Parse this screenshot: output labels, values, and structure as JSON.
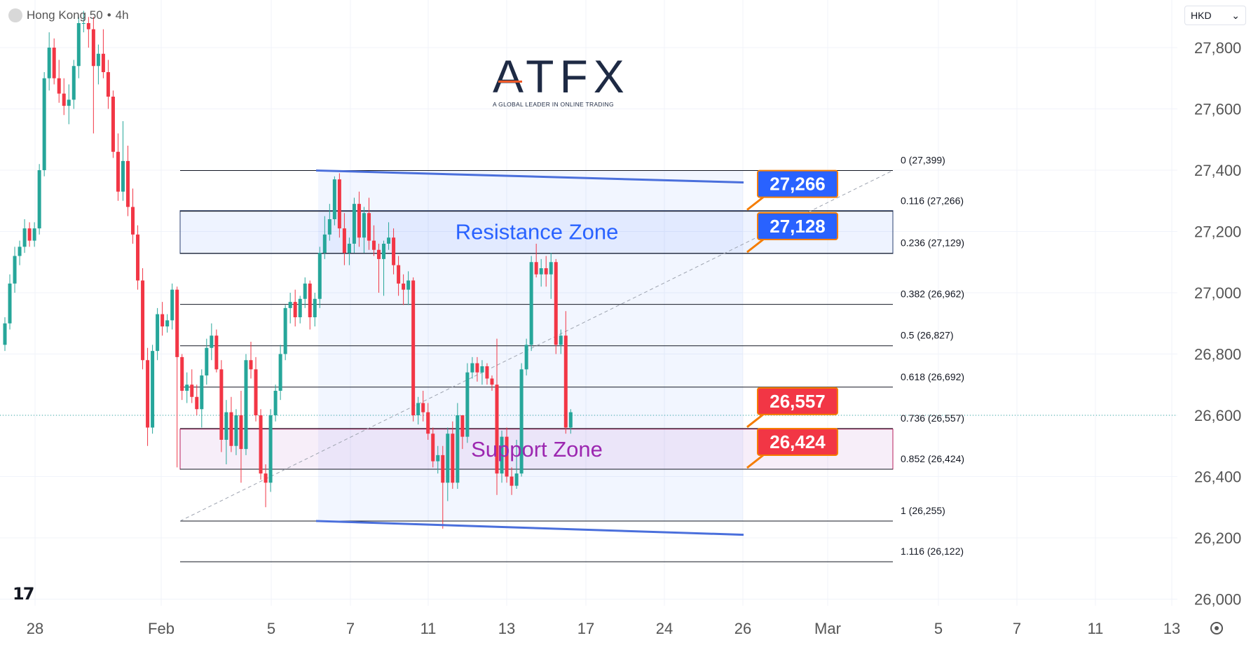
{
  "header": {
    "symbol": "Hong Kong 50",
    "separator": " • ",
    "timeframe": "4h"
  },
  "currency_select": {
    "value": "HKD",
    "chevron": "⌄"
  },
  "logo": {
    "name": "ATFX",
    "tagline": "A GLOBAL LEADER IN ONLINE TRADING"
  },
  "tv_logo": {
    "text": "17"
  },
  "colors": {
    "up": "#26a69a",
    "down": "#f23645",
    "resistance_zone": "#2962ff",
    "support_zone": "#9c27b0",
    "channel_line": "#4a6fdc",
    "label_blue": "#2962ff",
    "label_red": "#f23645"
  },
  "chart_data": {
    "type": "candlestick",
    "y_range": [
      25950,
      27900
    ],
    "y_ticks": [
      "27,800",
      "27,600",
      "27,400",
      "27,200",
      "27,000",
      "26,800",
      "26,600",
      "26,400",
      "26,200",
      "26,000"
    ],
    "x_ticks": [
      "28",
      "Feb",
      "5",
      "7",
      "11",
      "13",
      "17",
      "24",
      "26",
      "Mar",
      "5",
      "7",
      "11",
      "13"
    ],
    "current_price": 26600,
    "fib_levels": [
      {
        "label": "0 (27,399)",
        "ratio": 0,
        "value": 27399
      },
      {
        "label": "0.116 (27,266)",
        "ratio": 0.116,
        "value": 27266
      },
      {
        "label": "0.236 (27,129)",
        "ratio": 0.236,
        "value": 27129
      },
      {
        "label": "0.382 (26,962)",
        "ratio": 0.382,
        "value": 26962
      },
      {
        "label": "0.5 (26,827)",
        "ratio": 0.5,
        "value": 26827
      },
      {
        "label": "0.618 (26,692)",
        "ratio": 0.618,
        "value": 26692
      },
      {
        "label": "0.736 (26,557)",
        "ratio": 0.736,
        "value": 26557
      },
      {
        "label": "0.852 (26,424)",
        "ratio": 0.852,
        "value": 26424
      },
      {
        "label": "1 (26,255)",
        "ratio": 1,
        "value": 26255
      },
      {
        "label": "1.116 (26,122)",
        "ratio": 1.116,
        "value": 26122
      }
    ],
    "zones": [
      {
        "name": "Resistance Zone",
        "from": 27128,
        "to": 27268,
        "color": "#2962ff"
      },
      {
        "name": "Support Zone",
        "from": 26424,
        "to": 26555,
        "color": "#9c27b0"
      }
    ],
    "price_labels": [
      {
        "text": "27,266",
        "value": 27266,
        "color": "#2962ff"
      },
      {
        "text": "27,128",
        "value": 27128,
        "color": "#2962ff"
      },
      {
        "text": "26,557",
        "value": 26557,
        "color": "#f23645"
      },
      {
        "text": "26,424",
        "value": 26424,
        "color": "#f23645"
      }
    ],
    "candles": [
      {
        "o": 26830,
        "h": 26920,
        "l": 26810,
        "c": 26900
      },
      {
        "o": 26900,
        "h": 27060,
        "l": 26880,
        "c": 27030
      },
      {
        "o": 27030,
        "h": 27150,
        "l": 27000,
        "c": 27120
      },
      {
        "o": 27120,
        "h": 27170,
        "l": 27090,
        "c": 27150
      },
      {
        "o": 27150,
        "h": 27240,
        "l": 27130,
        "c": 27210
      },
      {
        "o": 27210,
        "h": 27230,
        "l": 27150,
        "c": 27170
      },
      {
        "o": 27170,
        "h": 27230,
        "l": 27150,
        "c": 27210
      },
      {
        "o": 27210,
        "h": 27420,
        "l": 27190,
        "c": 27400
      },
      {
        "o": 27400,
        "h": 27720,
        "l": 27380,
        "c": 27700
      },
      {
        "o": 27700,
        "h": 27850,
        "l": 27660,
        "c": 27800
      },
      {
        "o": 27800,
        "h": 27830,
        "l": 27680,
        "c": 27700
      },
      {
        "o": 27700,
        "h": 27760,
        "l": 27620,
        "c": 27650
      },
      {
        "o": 27650,
        "h": 27700,
        "l": 27580,
        "c": 27610
      },
      {
        "o": 27610,
        "h": 27680,
        "l": 27550,
        "c": 27630
      },
      {
        "o": 27630,
        "h": 27760,
        "l": 27600,
        "c": 27740
      },
      {
        "o": 27740,
        "h": 27900,
        "l": 27700,
        "c": 27880
      },
      {
        "o": 27880,
        "h": 27920,
        "l": 27850,
        "c": 27880
      },
      {
        "o": 27880,
        "h": 27900,
        "l": 27800,
        "c": 27860
      },
      {
        "o": 27860,
        "h": 27900,
        "l": 27520,
        "c": 27740
      },
      {
        "o": 27740,
        "h": 27810,
        "l": 27680,
        "c": 27780
      },
      {
        "o": 27780,
        "h": 27860,
        "l": 27700,
        "c": 27720
      },
      {
        "o": 27720,
        "h": 27760,
        "l": 27600,
        "c": 27640
      },
      {
        "o": 27640,
        "h": 27660,
        "l": 27440,
        "c": 27460
      },
      {
        "o": 27460,
        "h": 27520,
        "l": 27300,
        "c": 27330
      },
      {
        "o": 27330,
        "h": 27560,
        "l": 27300,
        "c": 27430
      },
      {
        "o": 27430,
        "h": 27480,
        "l": 27250,
        "c": 27280
      },
      {
        "o": 27280,
        "h": 27340,
        "l": 27160,
        "c": 27190
      },
      {
        "o": 27190,
        "h": 27220,
        "l": 27010,
        "c": 27040
      },
      {
        "o": 27040,
        "h": 27080,
        "l": 26750,
        "c": 26780
      },
      {
        "o": 26780,
        "h": 26820,
        "l": 26500,
        "c": 26560
      },
      {
        "o": 26560,
        "h": 26830,
        "l": 26540,
        "c": 26810
      },
      {
        "o": 26810,
        "h": 26950,
        "l": 26780,
        "c": 26930
      },
      {
        "o": 26930,
        "h": 26970,
        "l": 26860,
        "c": 26890
      },
      {
        "o": 26890,
        "h": 26930,
        "l": 26870,
        "c": 26910
      },
      {
        "o": 26910,
        "h": 27030,
        "l": 26880,
        "c": 27010
      },
      {
        "o": 27010,
        "h": 27020,
        "l": 26430,
        "c": 26790
      },
      {
        "o": 26790,
        "h": 26800,
        "l": 26650,
        "c": 26680
      },
      {
        "o": 26680,
        "h": 26740,
        "l": 26640,
        "c": 26700
      },
      {
        "o": 26700,
        "h": 26750,
        "l": 26640,
        "c": 26660
      },
      {
        "o": 26660,
        "h": 26700,
        "l": 26600,
        "c": 26620
      },
      {
        "o": 26620,
        "h": 26750,
        "l": 26560,
        "c": 26730
      },
      {
        "o": 26730,
        "h": 26850,
        "l": 26700,
        "c": 26820
      },
      {
        "o": 26820,
        "h": 26900,
        "l": 26780,
        "c": 26860
      },
      {
        "o": 26860,
        "h": 26880,
        "l": 26740,
        "c": 26750
      },
      {
        "o": 26750,
        "h": 26780,
        "l": 26480,
        "c": 26520
      },
      {
        "o": 26520,
        "h": 26650,
        "l": 26440,
        "c": 26610
      },
      {
        "o": 26610,
        "h": 26660,
        "l": 26480,
        "c": 26500
      },
      {
        "o": 26500,
        "h": 26620,
        "l": 26470,
        "c": 26600
      },
      {
        "o": 26600,
        "h": 26680,
        "l": 26380,
        "c": 26490
      },
      {
        "o": 26490,
        "h": 26800,
        "l": 26470,
        "c": 26780
      },
      {
        "o": 26780,
        "h": 26840,
        "l": 26720,
        "c": 26750
      },
      {
        "o": 26750,
        "h": 26790,
        "l": 26580,
        "c": 26600
      },
      {
        "o": 26600,
        "h": 26620,
        "l": 26390,
        "c": 26410
      },
      {
        "o": 26410,
        "h": 26440,
        "l": 26300,
        "c": 26380
      },
      {
        "o": 26380,
        "h": 26620,
        "l": 26350,
        "c": 26600
      },
      {
        "o": 26600,
        "h": 26700,
        "l": 26580,
        "c": 26680
      },
      {
        "o": 26680,
        "h": 26830,
        "l": 26650,
        "c": 26800
      },
      {
        "o": 26800,
        "h": 26960,
        "l": 26780,
        "c": 26950
      },
      {
        "o": 26950,
        "h": 27000,
        "l": 26900,
        "c": 26970
      },
      {
        "o": 26970,
        "h": 27010,
        "l": 26890,
        "c": 26920
      },
      {
        "o": 26920,
        "h": 26990,
        "l": 26900,
        "c": 26980
      },
      {
        "o": 26980,
        "h": 27050,
        "l": 26950,
        "c": 27030
      },
      {
        "o": 27030,
        "h": 27040,
        "l": 26880,
        "c": 26920
      },
      {
        "o": 26920,
        "h": 27000,
        "l": 26890,
        "c": 26980
      },
      {
        "o": 26980,
        "h": 27150,
        "l": 26950,
        "c": 27130
      },
      {
        "o": 27130,
        "h": 27250,
        "l": 27110,
        "c": 27190
      },
      {
        "o": 27190,
        "h": 27290,
        "l": 27170,
        "c": 27240
      },
      {
        "o": 27240,
        "h": 27380,
        "l": 27220,
        "c": 27370
      },
      {
        "o": 27370,
        "h": 27390,
        "l": 27180,
        "c": 27210
      },
      {
        "o": 27210,
        "h": 27260,
        "l": 27090,
        "c": 27130
      },
      {
        "o": 27130,
        "h": 27180,
        "l": 27090,
        "c": 27160
      },
      {
        "o": 27160,
        "h": 27310,
        "l": 27130,
        "c": 27290
      },
      {
        "o": 27290,
        "h": 27330,
        "l": 27150,
        "c": 27180
      },
      {
        "o": 27180,
        "h": 27280,
        "l": 27130,
        "c": 27260
      },
      {
        "o": 27260,
        "h": 27310,
        "l": 27140,
        "c": 27170
      },
      {
        "o": 27170,
        "h": 27220,
        "l": 27120,
        "c": 27140
      },
      {
        "o": 27140,
        "h": 27160,
        "l": 27000,
        "c": 27110
      },
      {
        "o": 27110,
        "h": 27170,
        "l": 26990,
        "c": 27160
      },
      {
        "o": 27160,
        "h": 27230,
        "l": 27140,
        "c": 27180
      },
      {
        "o": 27180,
        "h": 27210,
        "l": 27060,
        "c": 27090
      },
      {
        "o": 27090,
        "h": 27120,
        "l": 26990,
        "c": 27030
      },
      {
        "o": 27030,
        "h": 27060,
        "l": 26960,
        "c": 27010
      },
      {
        "o": 27010,
        "h": 27070,
        "l": 26960,
        "c": 27040
      },
      {
        "o": 27040,
        "h": 27050,
        "l": 26580,
        "c": 26600
      },
      {
        "o": 26600,
        "h": 26660,
        "l": 26570,
        "c": 26640
      },
      {
        "o": 26640,
        "h": 26680,
        "l": 26580,
        "c": 26610
      },
      {
        "o": 26610,
        "h": 26640,
        "l": 26520,
        "c": 26540
      },
      {
        "o": 26540,
        "h": 26560,
        "l": 26430,
        "c": 26450
      },
      {
        "o": 26450,
        "h": 26500,
        "l": 26410,
        "c": 26470
      },
      {
        "o": 26470,
        "h": 26500,
        "l": 26230,
        "c": 26380
      },
      {
        "o": 26380,
        "h": 26560,
        "l": 26320,
        "c": 26540
      },
      {
        "o": 26540,
        "h": 26580,
        "l": 26360,
        "c": 26380
      },
      {
        "o": 26380,
        "h": 26640,
        "l": 26360,
        "c": 26600
      },
      {
        "o": 26600,
        "h": 26590,
        "l": 26490,
        "c": 26530
      },
      {
        "o": 26530,
        "h": 26770,
        "l": 26510,
        "c": 26740
      },
      {
        "o": 26740,
        "h": 26790,
        "l": 26720,
        "c": 26770
      },
      {
        "o": 26770,
        "h": 26790,
        "l": 26710,
        "c": 26740
      },
      {
        "o": 26740,
        "h": 26780,
        "l": 26700,
        "c": 26760
      },
      {
        "o": 26760,
        "h": 26770,
        "l": 26700,
        "c": 26720
      },
      {
        "o": 26720,
        "h": 26730,
        "l": 26680,
        "c": 26700
      },
      {
        "o": 26700,
        "h": 26850,
        "l": 26340,
        "c": 26410
      },
      {
        "o": 26410,
        "h": 26550,
        "l": 26380,
        "c": 26530
      },
      {
        "o": 26530,
        "h": 26560,
        "l": 26380,
        "c": 26400
      },
      {
        "o": 26400,
        "h": 26430,
        "l": 26340,
        "c": 26370
      },
      {
        "o": 26370,
        "h": 26520,
        "l": 26360,
        "c": 26410
      },
      {
        "o": 26410,
        "h": 26770,
        "l": 26400,
        "c": 26750
      },
      {
        "o": 26750,
        "h": 26850,
        "l": 26730,
        "c": 26830
      },
      {
        "o": 26830,
        "h": 27120,
        "l": 26810,
        "c": 27100
      },
      {
        "o": 27100,
        "h": 27160,
        "l": 27050,
        "c": 27060
      },
      {
        "o": 27060,
        "h": 27110,
        "l": 27020,
        "c": 27080
      },
      {
        "o": 27080,
        "h": 27120,
        "l": 27020,
        "c": 27060
      },
      {
        "o": 27060,
        "h": 27130,
        "l": 26980,
        "c": 27100
      },
      {
        "o": 27100,
        "h": 27110,
        "l": 26800,
        "c": 26830
      },
      {
        "o": 26830,
        "h": 26880,
        "l": 26800,
        "c": 26860
      },
      {
        "o": 26860,
        "h": 26940,
        "l": 26540,
        "c": 26560
      },
      {
        "o": 26560,
        "h": 26620,
        "l": 26540,
        "c": 26610
      }
    ]
  }
}
